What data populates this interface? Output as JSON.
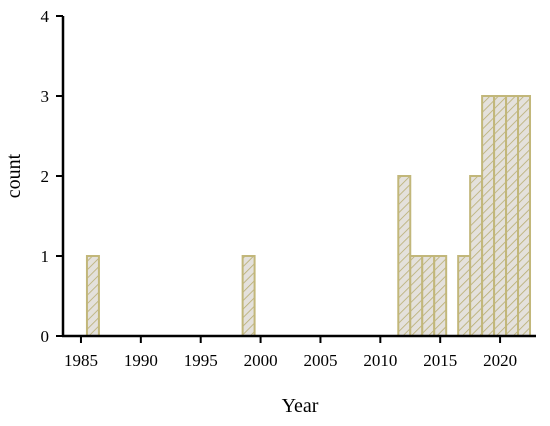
{
  "chart_data": {
    "type": "bar",
    "title": "",
    "xlabel": "Year",
    "ylabel": "count",
    "xlim": [
      1983.5,
      2023
    ],
    "ylim": [
      0,
      4
    ],
    "x_ticks": [
      "1985",
      "1990",
      "1995",
      "2000",
      "2005",
      "2010",
      "2015",
      "2020"
    ],
    "y_ticks": [
      "0",
      "1",
      "2",
      "3",
      "4"
    ],
    "bar_width_years": 1,
    "grid": false,
    "bars": [
      {
        "year": 1986,
        "value": 1
      },
      {
        "year": 1999,
        "value": 1
      },
      {
        "year": 2012,
        "value": 2
      },
      {
        "year": 2013,
        "value": 1
      },
      {
        "year": 2014,
        "value": 1
      },
      {
        "year": 2015,
        "value": 1
      },
      {
        "year": 2017,
        "value": 1
      },
      {
        "year": 2018,
        "value": 2
      },
      {
        "year": 2019,
        "value": 3
      },
      {
        "year": 2020,
        "value": 3
      },
      {
        "year": 2021,
        "value": 3
      },
      {
        "year": 2022,
        "value": 3
      }
    ],
    "colors": {
      "bar_fill": "#e4e1dc",
      "bar_edge": "#c2b77a",
      "hatch": "#b8ad70"
    }
  }
}
